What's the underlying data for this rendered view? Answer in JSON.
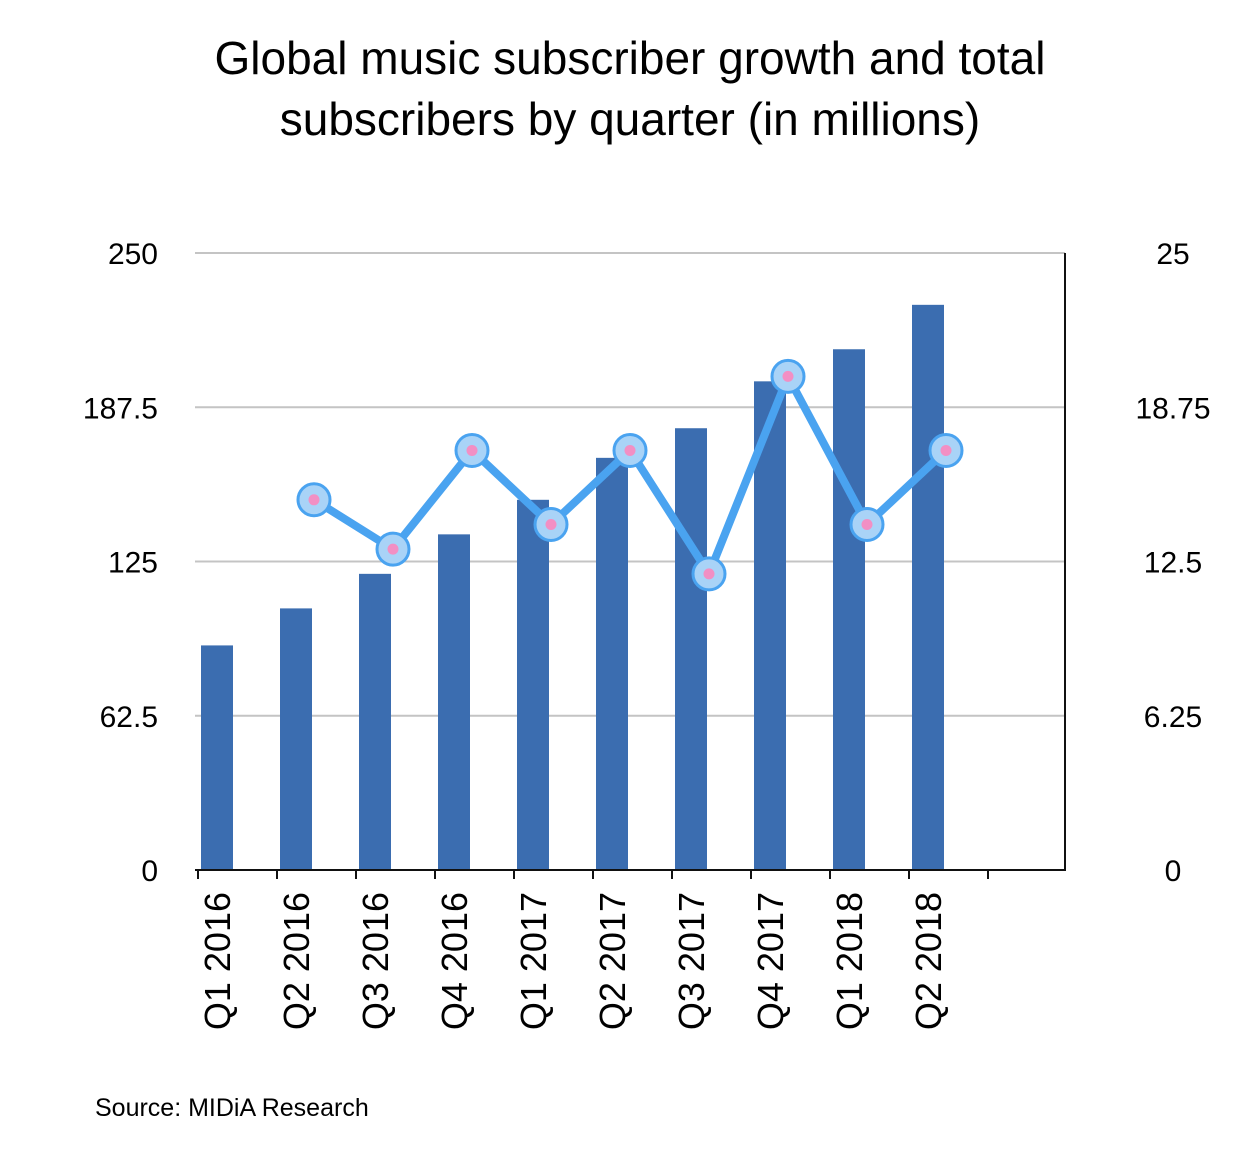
{
  "chart_data": {
    "type": "bar",
    "title": "Global music subscriber growth and total subscribers by quarter (in millions)",
    "source": "Source: MIDiA Research",
    "categories": [
      "Q1 2016",
      "Q2 2016",
      "Q3 2016",
      "Q4 2016",
      "Q1 2017",
      "Q2 2017",
      "Q3 2017",
      "Q4 2017",
      "Q1 2018",
      "Q2 2018"
    ],
    "series": [
      {
        "type": "bar",
        "axis": "left",
        "color": "#3b6db0",
        "values": [
          91,
          106,
          120,
          136,
          150,
          167,
          179,
          198,
          211,
          229
        ]
      },
      {
        "type": "line",
        "axis": "right",
        "color": "#4aa3f0",
        "marker_color": "#f28fc4",
        "values": [
          null,
          15.0,
          13.0,
          17.0,
          14.0,
          17.0,
          12.0,
          20.0,
          14.0,
          17.0
        ]
      }
    ],
    "y_left": {
      "min": 0,
      "max": 250,
      "ticks": [
        "0",
        "62.5",
        "125",
        "187.5",
        "250"
      ]
    },
    "y_right": {
      "min": 0,
      "max": 25,
      "ticks": [
        "0",
        "6.25",
        "12.5",
        "18.75",
        "25"
      ]
    },
    "grid": true
  }
}
